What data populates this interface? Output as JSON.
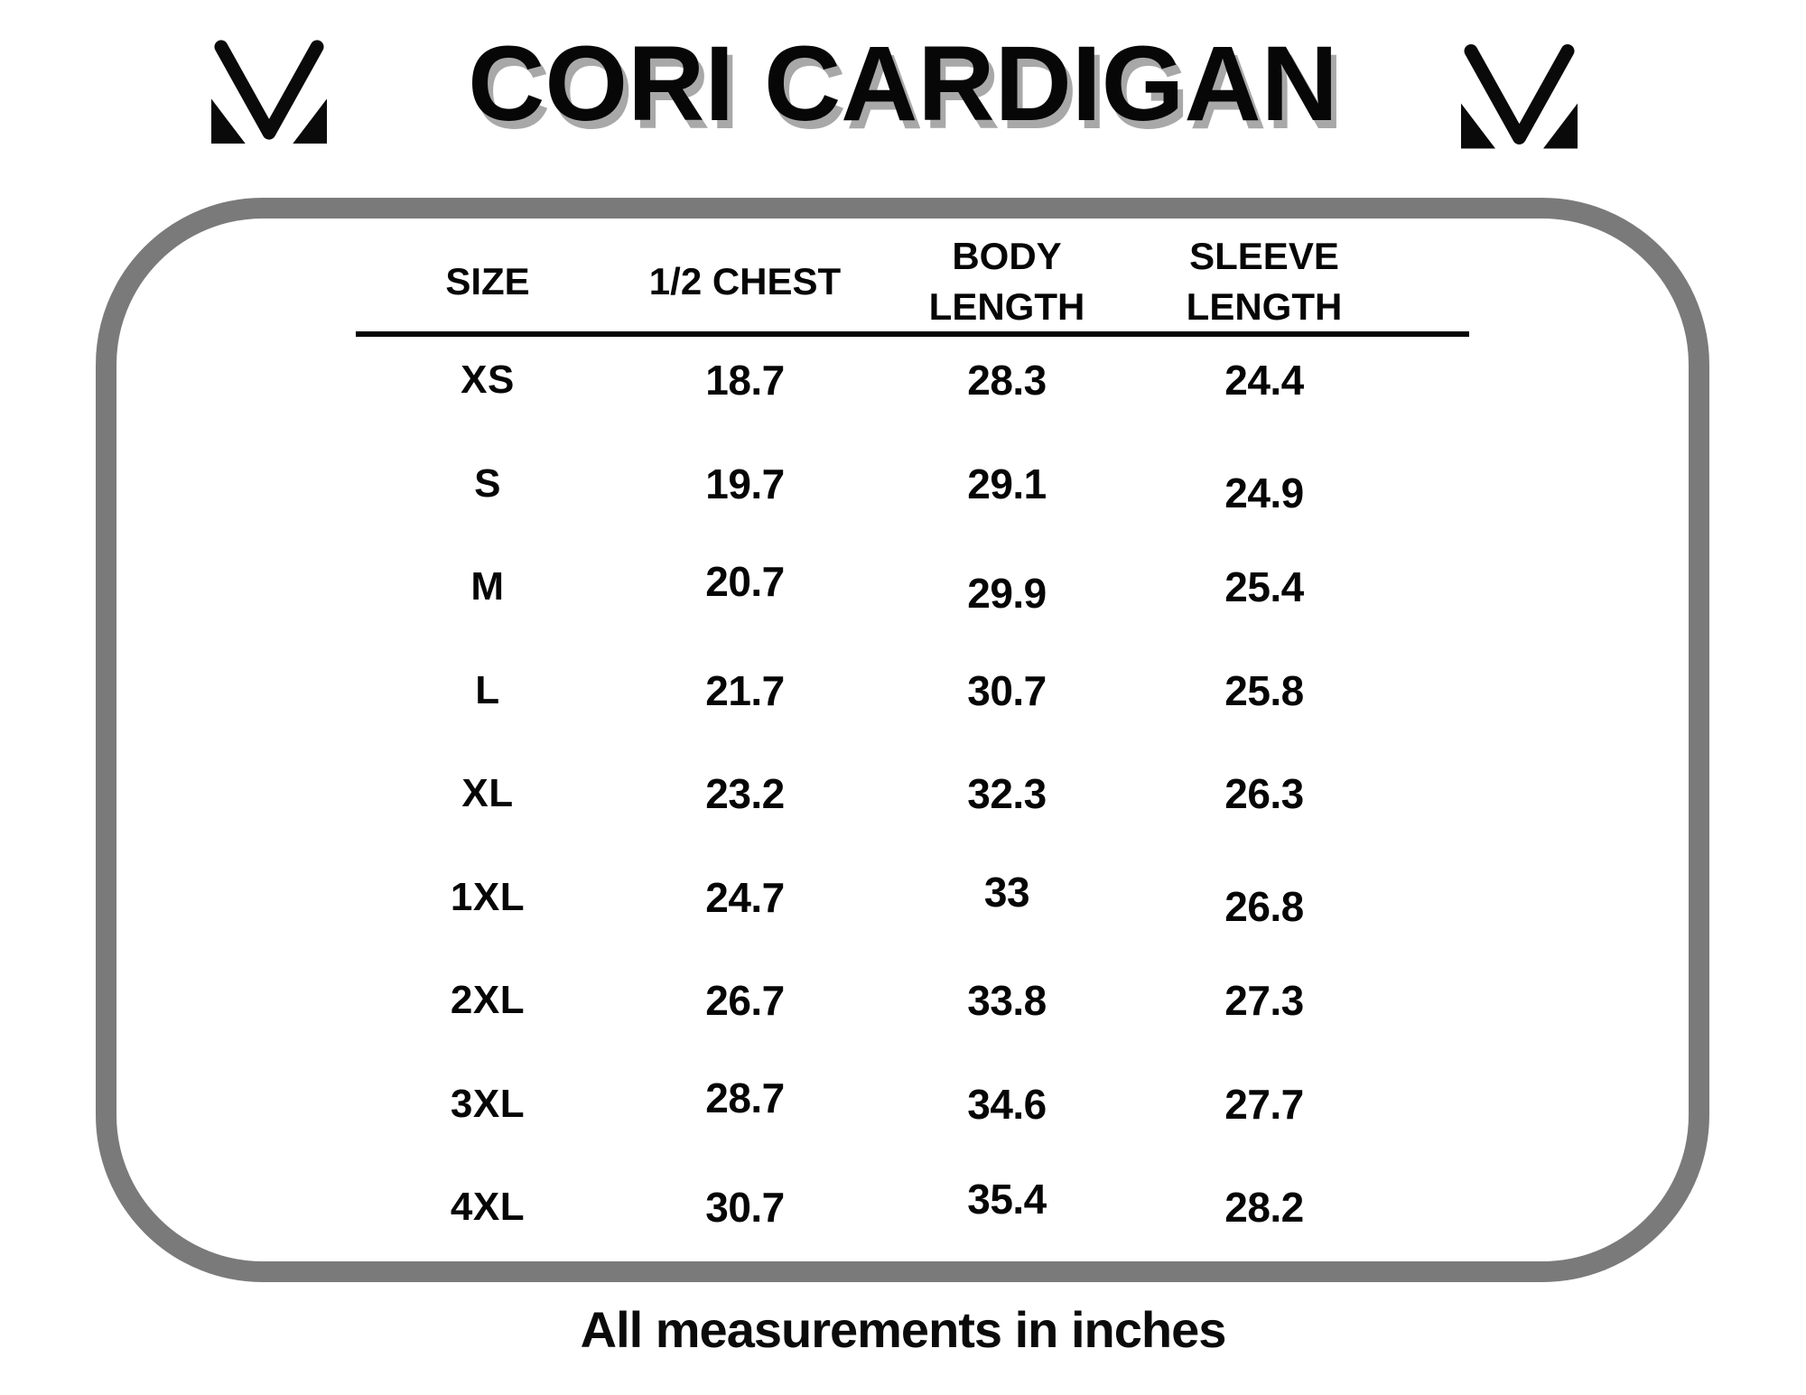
{
  "chart_data": {
    "type": "table",
    "title": "CORI CARDIGAN",
    "columns": [
      "SIZE",
      "1/2 CHEST",
      "BODY LENGTH",
      "SLEEVE LENGTH"
    ],
    "rows": [
      [
        "XS",
        "18.7",
        "28.3",
        "24.4"
      ],
      [
        "S",
        "19.7",
        "29.1",
        "24.9"
      ],
      [
        "M",
        "20.7",
        "29.9",
        "25.4"
      ],
      [
        "L",
        "21.7",
        "30.7",
        "25.8"
      ],
      [
        "XL",
        "23.2",
        "32.3",
        "26.3"
      ],
      [
        "1XL",
        "24.7",
        "33",
        "26.8"
      ],
      [
        "2XL",
        "26.7",
        "33.8",
        "27.3"
      ],
      [
        "3XL",
        "28.7",
        "34.6",
        "27.7"
      ],
      [
        "4XL",
        "30.7",
        "35.4",
        "28.2"
      ]
    ],
    "footnote": "All measurements in inches",
    "units": "inches",
    "grid": "header underline only",
    "legend_position": "none"
  },
  "header": {
    "title": "CORI CARDIGAN",
    "left_logo_icon": "m-brand-logo",
    "right_logo_icon": "m-brand-logo"
  },
  "table": {
    "header_labels": [
      "SIZE",
      "1/2 CHEST",
      "BODY\nLENGTH",
      "SLEEVE\nLENGTH"
    ]
  },
  "footer": {
    "note": "All measurements in inches"
  },
  "colors": {
    "background": "#ffffff",
    "text": "#060606",
    "frame_border": "#7a7a7a",
    "title_shadow": "#a8a8a8"
  }
}
